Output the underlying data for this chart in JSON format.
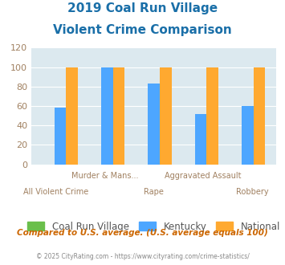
{
  "title_line1": "2019 Coal Run Village",
  "title_line2": "Violent Crime Comparison",
  "categories": [
    "All Violent Crime",
    "Murder & Mans...",
    "Rape",
    "Aggravated Assault",
    "Robbery"
  ],
  "x_labels_row1": [
    "",
    "Murder & Mans...",
    "",
    "Aggravated Assault",
    ""
  ],
  "x_labels_row2": [
    "All Violent Crime",
    "",
    "Rape",
    "",
    "Robbery"
  ],
  "coal_run_village": [
    0,
    0,
    0,
    0,
    0
  ],
  "kentucky": [
    58,
    100,
    83,
    52,
    60
  ],
  "national": [
    100,
    100,
    100,
    100,
    100
  ],
  "bar_colors": {
    "coal_run_village": "#6abf4b",
    "kentucky": "#4da6ff",
    "national": "#ffa930"
  },
  "ylim": [
    0,
    120
  ],
  "yticks": [
    0,
    20,
    40,
    60,
    80,
    100,
    120
  ],
  "plot_bg": "#dce9ef",
  "title_color": "#1a6fa8",
  "tick_color": "#a08060",
  "legend_labels": [
    "Coal Run Village",
    "Kentucky",
    "National"
  ],
  "legend_text_color": "#555555",
  "footer_text1": "Compared to U.S. average. (U.S. average equals 100)",
  "footer_text2": "© 2025 CityRating.com - https://www.cityrating.com/crime-statistics/",
  "footer_color1": "#cc6600",
  "footer_color2": "#888888",
  "bar_width": 0.25,
  "ytick_fontsize": 8,
  "xlabel_fontsize": 7,
  "title_fontsize": 11
}
